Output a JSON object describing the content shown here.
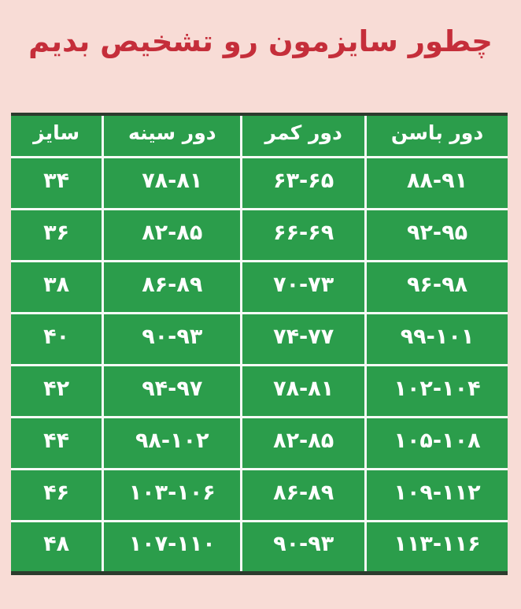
{
  "page": {
    "background_color": "#f8dcd6"
  },
  "title": {
    "text": "چطور سایزمون رو تشخیص بدیم",
    "color": "#c52e3a"
  },
  "table": {
    "green_color": "#2b9d4b",
    "edge_color": "#2c3b2d",
    "grid_color": "#f6faf6",
    "text_color": "#ffffff",
    "headers_left_to_right": [
      "سایز",
      "دور سینه",
      "دور کمر",
      "دور باسن"
    ],
    "rows": [
      [
        "۳۴",
        "۷۸-۸۱",
        "۶۳-۶۵",
        "۸۸-۹۱"
      ],
      [
        "۳۶",
        "۸۲-۸۵",
        "۶۶-۶۹",
        "۹۲-۹۵"
      ],
      [
        "۳۸",
        "۸۶-۸۹",
        "۷۰-۷۳",
        "۹۶-۹۸"
      ],
      [
        "۴۰",
        "۹۰-۹۳",
        "۷۴-۷۷",
        "۹۹-۱۰۱"
      ],
      [
        "۴۲",
        "۹۴-۹۷",
        "۷۸-۸۱",
        "۱۰۲-۱۰۴"
      ],
      [
        "۴۴",
        "۹۸-۱۰۲",
        "۸۲-۸۵",
        "۱۰۵-۱۰۸"
      ],
      [
        "۴۶",
        "۱۰۳-۱۰۶",
        "۸۶-۸۹",
        "۱۰۹-۱۱۲"
      ],
      [
        "۴۸",
        "۱۰۷-۱۱۰",
        "۹۰-۹۳",
        "۱۱۳-۱۱۶"
      ]
    ]
  },
  "chart_data": {
    "type": "table",
    "title": "چطور سایزمون رو تشخیص بدیم",
    "columns": [
      "سایز",
      "دور سینه",
      "دور کمر",
      "دور باسن"
    ],
    "rows": [
      [
        "۳۴",
        "۷۸-۸۱",
        "۶۳-۶۵",
        "۸۸-۹۱"
      ],
      [
        "۳۶",
        "۸۲-۸۵",
        "۶۶-۶۹",
        "۹۲-۹۵"
      ],
      [
        "۳۸",
        "۸۶-۸۹",
        "۷۰-۷۳",
        "۹۶-۹۸"
      ],
      [
        "۴۰",
        "۹۰-۹۳",
        "۷۴-۷۷",
        "۹۹-۱۰۱"
      ],
      [
        "۴۲",
        "۹۴-۹۷",
        "۷۸-۸۱",
        "۱۰۲-۱۰۴"
      ],
      [
        "۴۴",
        "۹۸-۱۰۲",
        "۸۲-۸۵",
        "۱۰۵-۱۰۸"
      ],
      [
        "۴۶",
        "۱۰۳-۱۰۶",
        "۸۶-۸۹",
        "۱۰۹-۱۱۲"
      ],
      [
        "۴۸",
        "۱۰۷-۱۱۰",
        "۹۰-۹۳",
        "۱۱۳-۱۱۶"
      ]
    ],
    "legend_position": "none",
    "grid": true
  }
}
